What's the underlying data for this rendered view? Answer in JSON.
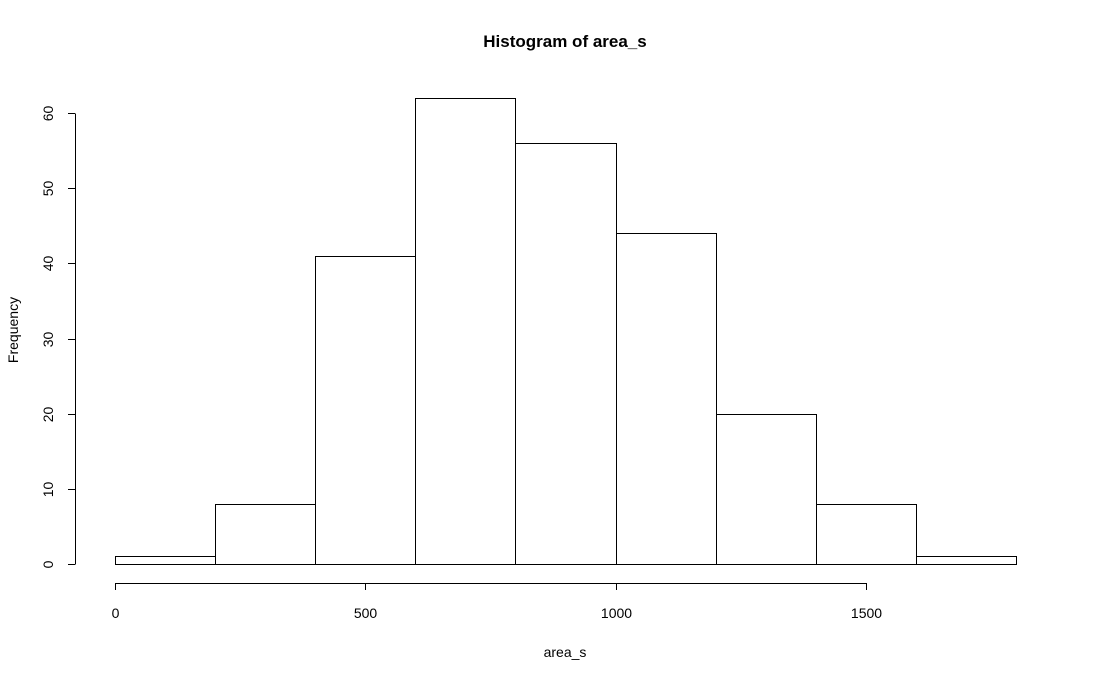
{
  "chart_data": {
    "type": "bar",
    "title": "Histogram of area_s",
    "xlabel": "area_s",
    "ylabel": "Frequency",
    "bin_edges": [
      0,
      200,
      400,
      600,
      800,
      1000,
      1200,
      1400,
      1600,
      1800
    ],
    "values": [
      1,
      8,
      41,
      62,
      56,
      44,
      20,
      8,
      1
    ],
    "xlim": [
      0,
      1800
    ],
    "ylim": [
      0,
      62
    ],
    "x_ticks": [
      0,
      500,
      1000,
      1500
    ],
    "y_ticks": [
      0,
      10,
      20,
      30,
      40,
      50,
      60
    ],
    "grid": false,
    "bar_fill": "#ffffff",
    "bar_stroke": "#000000"
  }
}
